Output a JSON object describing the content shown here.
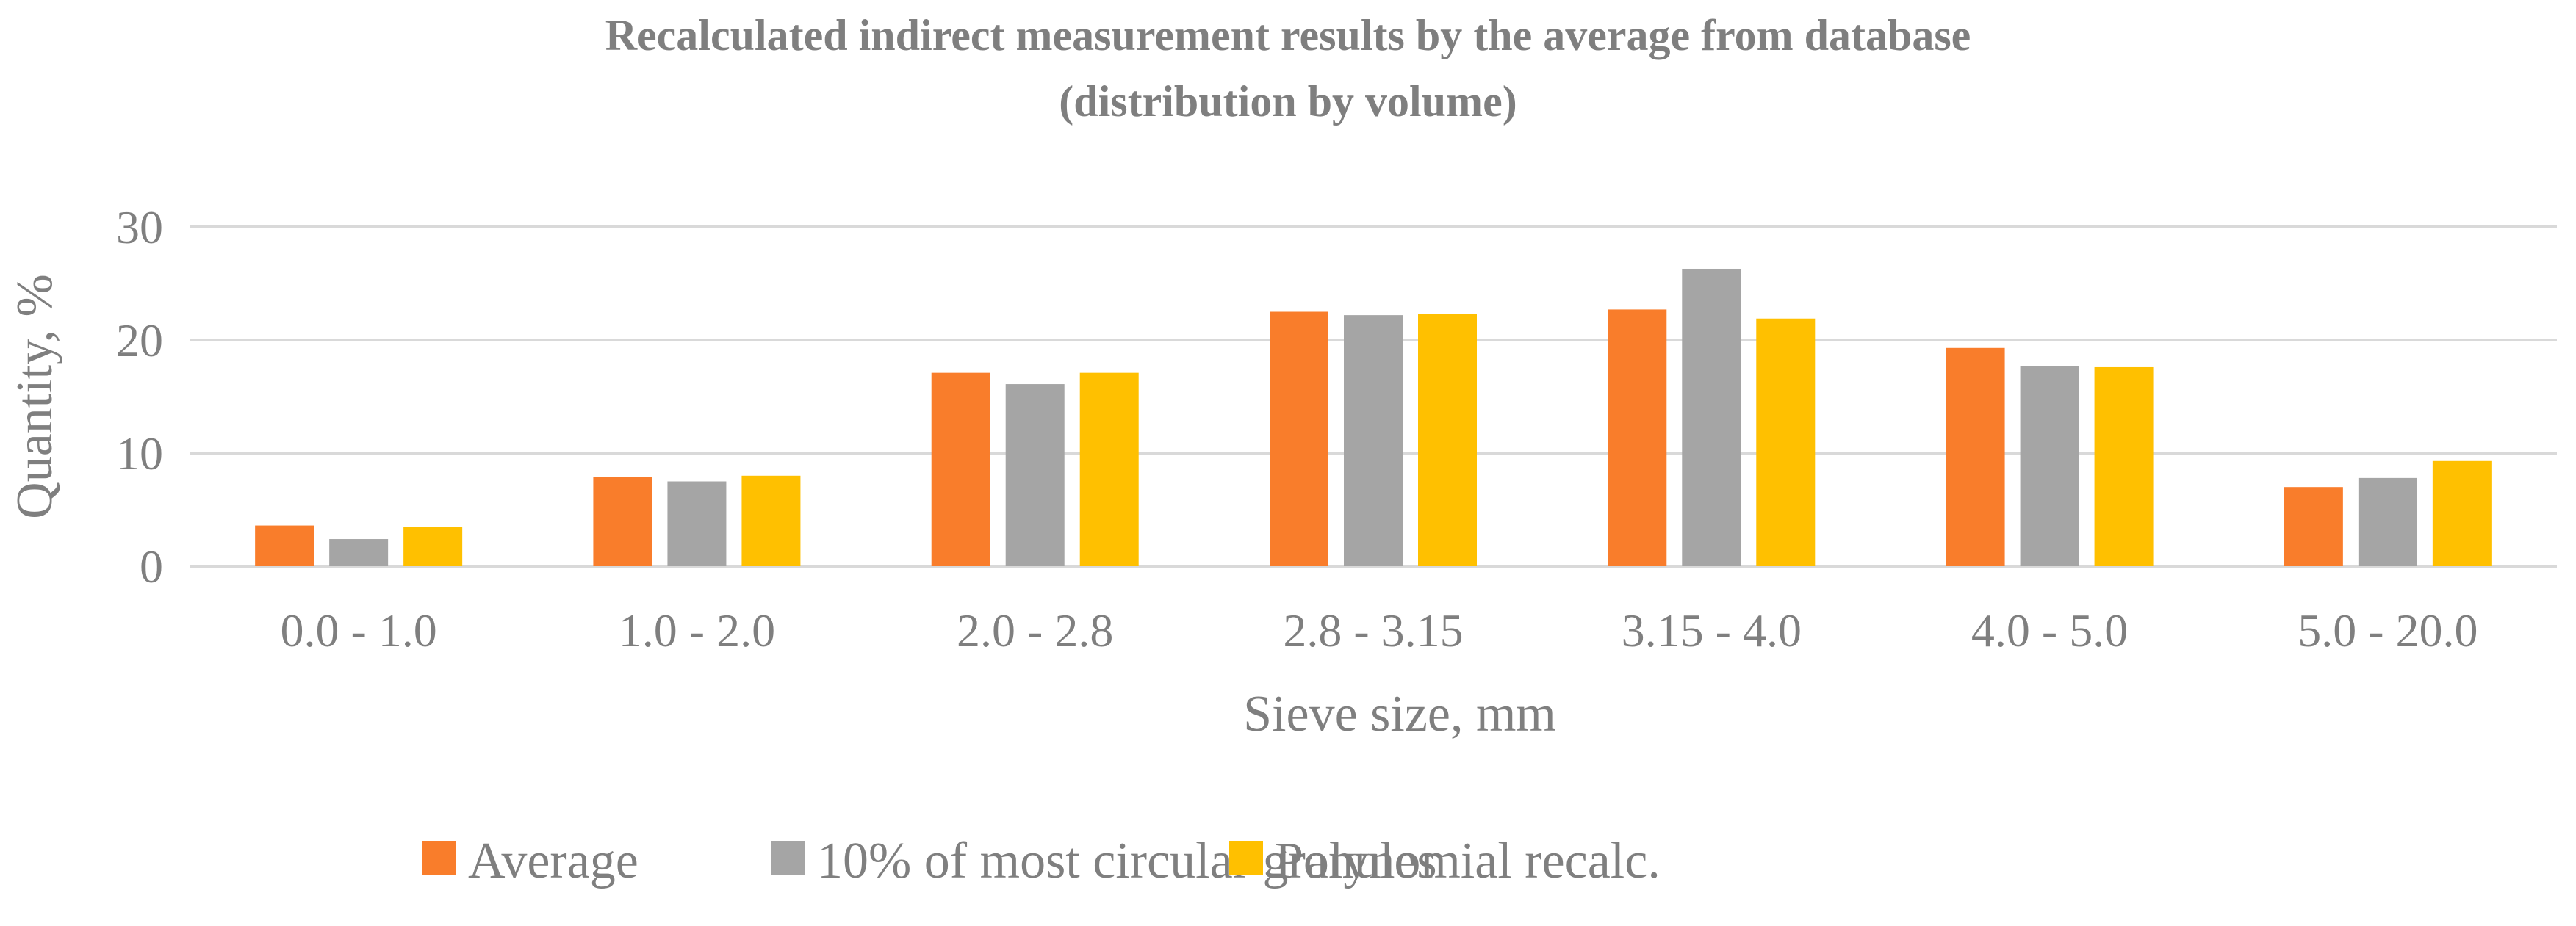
{
  "chart_data": {
    "type": "bar",
    "title": "Recalculated indirect measurement results by the average from database",
    "subtitle": "(distribution by volume)",
    "xlabel": "Sieve size, mm",
    "ylabel": "Quantity, %",
    "ylim": [
      0,
      30
    ],
    "yticks": [
      0,
      10,
      20,
      30
    ],
    "grid": true,
    "legend_position": "bottom",
    "categories": [
      "0.0 - 1.0",
      "1.0 - 2.0",
      "2.0 - 2.8",
      "2.8 - 3.15",
      "3.15 - 4.0",
      "4.0 - 5.0",
      "5.0 - 20.0"
    ],
    "series": [
      {
        "name": "Average",
        "color": "#f97d2b",
        "values": [
          3.6,
          7.9,
          17.1,
          22.5,
          22.7,
          19.3,
          7.0
        ]
      },
      {
        "name": "10% of most circular granules",
        "color": "#a5a5a5",
        "values": [
          2.4,
          7.5,
          16.1,
          22.2,
          26.3,
          17.7,
          7.8
        ]
      },
      {
        "name": "Polynomial recalc.",
        "color": "#ffc000",
        "values": [
          3.5,
          8.0,
          17.1,
          22.3,
          21.9,
          17.6,
          9.3
        ]
      }
    ],
    "colors": {
      "text": "#7f7f7f",
      "gridline": "#d9d9d9"
    }
  }
}
